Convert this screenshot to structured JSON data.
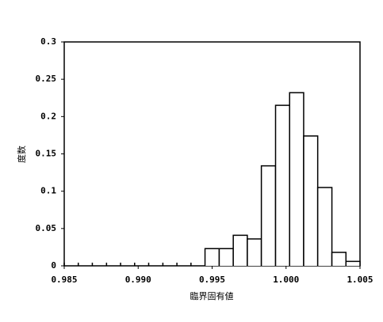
{
  "chart_data": {
    "type": "histogram",
    "x_label": "臨界固有値",
    "y_label": "度数",
    "bins": [
      0.985,
      0.98595,
      0.9869,
      0.98786,
      0.98881,
      0.98976,
      0.99071,
      0.99167,
      0.99262,
      0.99357,
      0.99452,
      0.99548,
      0.99643,
      0.99738,
      0.99833,
      0.99929,
      1.00024,
      1.00119,
      1.00214,
      1.0031,
      1.00405,
      1.005
    ],
    "values": [
      0,
      0,
      0,
      0,
      0,
      0,
      0,
      0,
      0,
      0,
      0.023,
      0.023,
      0.041,
      0.036,
      0.134,
      0.215,
      0.232,
      0.174,
      0.105,
      0.018,
      0.006
    ],
    "color": "#ffffff",
    "xlim": [
      0.985,
      1.005
    ],
    "xticks": [
      {
        "value": 0.985,
        "label": "0.985"
      },
      {
        "value": 0.99,
        "label": "0.990"
      },
      {
        "value": 0.995,
        "label": "0.995"
      },
      {
        "value": 1.0,
        "label": "1.000"
      },
      {
        "value": 1.005,
        "label": "1.005"
      }
    ],
    "ylim": [
      0,
      0.3
    ],
    "yticks": [
      0,
      0.05,
      0.1,
      0.15,
      0.2,
      0.25,
      0.3
    ]
  }
}
